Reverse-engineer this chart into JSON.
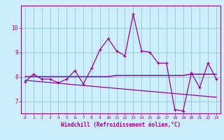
{
  "x": [
    0,
    1,
    2,
    3,
    4,
    5,
    6,
    7,
    8,
    9,
    10,
    11,
    12,
    13,
    14,
    15,
    16,
    17,
    18,
    19,
    20,
    21,
    22,
    23
  ],
  "y_main": [
    7.8,
    8.1,
    7.9,
    7.9,
    7.75,
    7.9,
    8.25,
    7.7,
    8.35,
    9.1,
    9.55,
    9.05,
    8.85,
    10.55,
    9.05,
    9.0,
    8.55,
    8.55,
    6.65,
    6.6,
    8.15,
    7.55,
    8.55,
    7.9
  ],
  "y_mean": [
    8.0,
    8.0,
    8.0,
    8.0,
    8.0,
    8.0,
    8.0,
    8.0,
    8.0,
    8.0,
    8.0,
    8.05,
    8.05,
    8.05,
    8.05,
    8.05,
    8.05,
    8.05,
    8.05,
    8.05,
    8.1,
    8.1,
    8.1,
    8.1
  ],
  "y_trend": [
    7.85,
    7.82,
    7.79,
    7.76,
    7.73,
    7.7,
    7.67,
    7.64,
    7.61,
    7.58,
    7.55,
    7.52,
    7.49,
    7.46,
    7.43,
    7.4,
    7.37,
    7.34,
    7.31,
    7.28,
    7.25,
    7.22,
    7.19,
    7.16
  ],
  "line_color": "#9b009b",
  "bg_color": "#cceeff",
  "grid_color": "#99cccc",
  "xlabel": "Windchill (Refroidissement éolien,°C)",
  "yticks": [
    7,
    8,
    9,
    10
  ],
  "xticks": [
    0,
    1,
    2,
    3,
    4,
    5,
    6,
    7,
    8,
    9,
    10,
    11,
    12,
    13,
    14,
    15,
    16,
    17,
    18,
    19,
    20,
    21,
    22,
    23
  ],
  "ylim": [
    6.5,
    10.9
  ],
  "xlim": [
    -0.5,
    23.5
  ]
}
